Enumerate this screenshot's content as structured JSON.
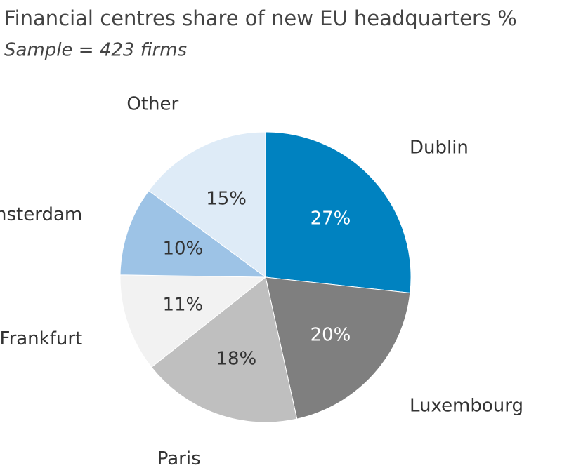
{
  "chart_data": {
    "type": "pie",
    "title": "Financial centres share of new EU headquarters %",
    "subtitle": "Sample = 423 firms",
    "categories": [
      "Dublin",
      "Luxembourg",
      "Paris",
      "Frankfurt",
      "Amsterdam",
      "Other"
    ],
    "values": [
      27,
      20,
      18,
      11,
      10,
      15
    ],
    "value_labels": [
      "27%",
      "20%",
      "18%",
      "11%",
      "10%",
      "15%"
    ],
    "colors": [
      "#0082c0",
      "#7f7f7f",
      "#bfbfbf",
      "#f2f2f2",
      "#9dc3e6",
      "#deebf7"
    ]
  }
}
